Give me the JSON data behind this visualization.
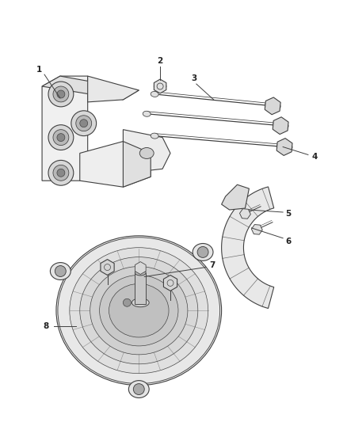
{
  "background_color": "#ffffff",
  "figure_width": 4.38,
  "figure_height": 5.33,
  "dpi": 100,
  "line_color": "#404040",
  "label_color": "#222222",
  "label_fontsize": 7.5,
  "lw": 0.8
}
